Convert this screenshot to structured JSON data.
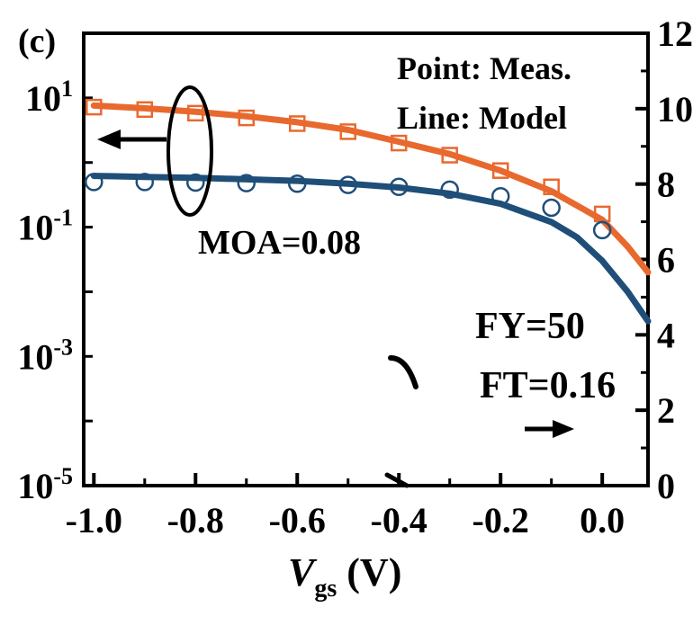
{
  "chart_data": {
    "type": "line",
    "panel_label": "(c)",
    "xlabel_main": "V",
    "xlabel_sub": "gs",
    "xlabel_unit": " (V)",
    "x_ticks": [
      "-1.0",
      "-0.8",
      "-0.6",
      "-0.4",
      "-0.2",
      "0.0"
    ],
    "xlim": [
      -1.02,
      0.09
    ],
    "left_axis": {
      "scale": "log",
      "ylim": [
        1e-05,
        100
      ],
      "ticks": [
        {
          "base": "10",
          "exp": "1",
          "value": 10
        },
        {
          "base": "10",
          "exp": "-1",
          "value": 0.1
        },
        {
          "base": "10",
          "exp": "-3",
          "value": 0.001
        },
        {
          "base": "10",
          "exp": "-5",
          "value": 1e-05
        }
      ]
    },
    "right_axis": {
      "scale": "linear",
      "ylim": [
        0,
        12
      ],
      "ticks": [
        "0",
        "2",
        "4",
        "6",
        "8",
        "10",
        "12"
      ]
    },
    "legend": {
      "line1": "Point: Meas.",
      "line2": "Line: Model"
    },
    "annotations": {
      "moa": "MOA=0.08",
      "fy": "FY=50",
      "ft": "FT=0.16"
    },
    "series": [
      {
        "color": "#E8692E",
        "marker": "square",
        "axis": "left",
        "points": {
          "x": [
            -1.0,
            -0.9,
            -0.8,
            -0.7,
            -0.6,
            -0.5,
            -0.4,
            -0.3,
            -0.2,
            -0.1,
            0.0
          ],
          "y": [
            7.2,
            6.6,
            5.8,
            4.9,
            4.0,
            3.0,
            2.0,
            1.3,
            0.75,
            0.42,
            0.16
          ]
        },
        "model": {
          "x": [
            -1.0,
            -0.9,
            -0.8,
            -0.7,
            -0.6,
            -0.5,
            -0.4,
            -0.3,
            -0.2,
            -0.1,
            0.0,
            0.05,
            0.09
          ],
          "y": [
            7.6,
            6.9,
            6.1,
            5.2,
            4.2,
            3.2,
            2.1,
            1.35,
            0.75,
            0.36,
            0.13,
            0.05,
            0.02
          ]
        }
      },
      {
        "color": "#1F4E79",
        "marker": "circle",
        "axis": "left",
        "points": {
          "x": [
            -1.0,
            -0.9,
            -0.8,
            -0.7,
            -0.6,
            -0.5,
            -0.4,
            -0.3,
            -0.2,
            -0.1,
            0.0
          ],
          "y": [
            0.5,
            0.5,
            0.49,
            0.48,
            0.47,
            0.45,
            0.42,
            0.38,
            0.3,
            0.2,
            0.09
          ]
        },
        "model": {
          "x": [
            -1.0,
            -0.9,
            -0.8,
            -0.7,
            -0.6,
            -0.5,
            -0.4,
            -0.3,
            -0.2,
            -0.1,
            -0.05,
            0.0,
            0.05,
            0.09
          ],
          "y": [
            0.62,
            0.6,
            0.58,
            0.55,
            0.52,
            0.47,
            0.41,
            0.33,
            0.23,
            0.12,
            0.07,
            0.03,
            0.01,
            0.0035
          ]
        }
      }
    ]
  }
}
